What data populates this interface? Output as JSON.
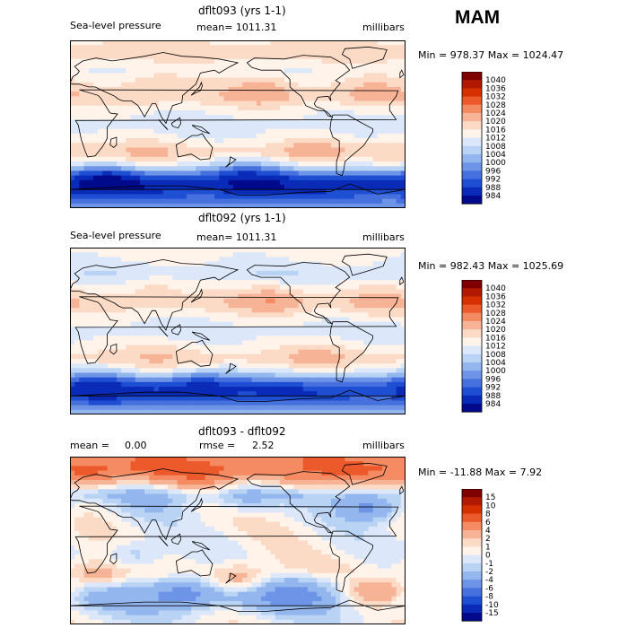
{
  "season": "MAM",
  "chart_data": [
    {
      "type": "heatmap",
      "title": "dflt093 (yrs 1-1)",
      "variable_label": "Sea-level pressure",
      "stat_label": "mean= 1011.31",
      "units": "millibars",
      "minmax_text": "Min = 978.37 Max = 1024.47",
      "min": 978.37,
      "max": 1024.47,
      "mean": 1011.31,
      "colorbar": {
        "levels": [
          "1040",
          "1036",
          "1032",
          "1028",
          "1024",
          "1020",
          "1016",
          "1012",
          "1008",
          "1004",
          "1000",
          "996",
          "992",
          "988",
          "984"
        ],
        "colors": [
          "#7f0000",
          "#b21a00",
          "#d73000",
          "#ec5a2c",
          "#f58b62",
          "#f7b396",
          "#fbdac6",
          "#fff3ea",
          "#dce8fa",
          "#b9d3f4",
          "#93b6ee",
          "#6d94e6",
          "#4670de",
          "#1e4ed2",
          "#0a2ab8",
          "#000a8a"
        ]
      },
      "bands": [
        {
          "lat": 90,
          "v": 1016
        },
        {
          "lat": 75,
          "v": 1019
        },
        {
          "lat": 60,
          "v": 1012
        },
        {
          "lat": 45,
          "v": 1015
        },
        {
          "lat": 30,
          "v": 1019
        },
        {
          "lat": 15,
          "v": 1013
        },
        {
          "lat": 0,
          "v": 1010
        },
        {
          "lat": -15,
          "v": 1012
        },
        {
          "lat": -30,
          "v": 1019
        },
        {
          "lat": -45,
          "v": 1007
        },
        {
          "lat": -55,
          "v": 992
        },
        {
          "lat": -65,
          "v": 984
        },
        {
          "lat": -78,
          "v": 992
        },
        {
          "lat": -90,
          "v": 1000
        }
      ],
      "blobs": [
        {
          "lon": 205,
          "lat": 35,
          "v": 1025
        },
        {
          "lon": 325,
          "lat": 35,
          "v": 1023
        },
        {
          "lon": 95,
          "lat": 40,
          "v": 1021
        },
        {
          "lon": 260,
          "lat": -28,
          "v": 1024
        },
        {
          "lon": 350,
          "lat": -30,
          "v": 1021
        },
        {
          "lon": 80,
          "lat": -32,
          "v": 1022
        },
        {
          "lon": 40,
          "lat": -62,
          "v": 980
        },
        {
          "lon": 190,
          "lat": -60,
          "v": 982
        }
      ]
    },
    {
      "type": "heatmap",
      "title": "dflt092 (yrs 1-1)",
      "variable_label": "Sea-level pressure",
      "stat_label": "mean= 1011.31",
      "units": "millibars",
      "minmax_text": "Min = 982.43 Max = 1025.69",
      "min": 982.43,
      "max": 1025.69,
      "mean": 1011.31,
      "colorbar": {
        "levels": [
          "1040",
          "1036",
          "1032",
          "1028",
          "1024",
          "1020",
          "1016",
          "1012",
          "1008",
          "1004",
          "1000",
          "996",
          "992",
          "988",
          "984"
        ],
        "colors": [
          "#7f0000",
          "#b21a00",
          "#d73000",
          "#ec5a2c",
          "#f58b62",
          "#f7b396",
          "#fbdac6",
          "#fff3ea",
          "#dce8fa",
          "#b9d3f4",
          "#93b6ee",
          "#6d94e6",
          "#4670de",
          "#1e4ed2",
          "#0a2ab8",
          "#000a8a"
        ]
      },
      "bands": [
        {
          "lat": 90,
          "v": 1014
        },
        {
          "lat": 75,
          "v": 1012
        },
        {
          "lat": 60,
          "v": 1008
        },
        {
          "lat": 45,
          "v": 1014
        },
        {
          "lat": 30,
          "v": 1019
        },
        {
          "lat": 15,
          "v": 1013
        },
        {
          "lat": 0,
          "v": 1010
        },
        {
          "lat": -15,
          "v": 1013
        },
        {
          "lat": -30,
          "v": 1019
        },
        {
          "lat": -45,
          "v": 1008
        },
        {
          "lat": -55,
          "v": 994
        },
        {
          "lat": -65,
          "v": 987
        },
        {
          "lat": -78,
          "v": 995
        },
        {
          "lat": -90,
          "v": 1003
        }
      ],
      "blobs": [
        {
          "lon": 215,
          "lat": 33,
          "v": 1026
        },
        {
          "lon": 330,
          "lat": 33,
          "v": 1024
        },
        {
          "lon": 90,
          "lat": 45,
          "v": 1018
        },
        {
          "lon": 265,
          "lat": -28,
          "v": 1023
        },
        {
          "lon": 95,
          "lat": -30,
          "v": 1021
        },
        {
          "lon": 30,
          "lat": -62,
          "v": 983
        },
        {
          "lon": 140,
          "lat": -62,
          "v": 983
        }
      ]
    },
    {
      "type": "heatmap",
      "title": "dflt093 - dflt092",
      "variable_label": "mean =",
      "mean_value": "0.00",
      "stat_label": "rmse =",
      "rmse_value": "2.52",
      "units": "millibars",
      "minmax_text": "Min = -11.88 Max =    7.92",
      "min": -11.88,
      "max": 7.92,
      "mean": 0.0,
      "rmse": 2.52,
      "colorbar": {
        "levels": [
          "15",
          "10",
          "8",
          "6",
          "4",
          "2",
          "1",
          "0",
          "-1",
          "-2",
          "-4",
          "-6",
          "-8",
          "-10",
          "-15"
        ],
        "colors": [
          "#7f0000",
          "#b21a00",
          "#d73000",
          "#ec5a2c",
          "#f58b62",
          "#f7b396",
          "#fbdac6",
          "#fff3ea",
          "#dce8fa",
          "#b9d3f4",
          "#93b6ee",
          "#6d94e6",
          "#4670de",
          "#1e4ed2",
          "#0a2ab8",
          "#000a8a"
        ]
      },
      "bands": [
        {
          "lat": 90,
          "v": 5
        },
        {
          "lat": 75,
          "v": 6
        },
        {
          "lat": 62,
          "v": 2
        },
        {
          "lat": 50,
          "v": -1.5
        },
        {
          "lat": 35,
          "v": 0.3
        },
        {
          "lat": 15,
          "v": 0.3
        },
        {
          "lat": 0,
          "v": 0.2
        },
        {
          "lat": -15,
          "v": 0.3
        },
        {
          "lat": -30,
          "v": 0.5
        },
        {
          "lat": -45,
          "v": -1.5
        },
        {
          "lat": -60,
          "v": -3
        },
        {
          "lat": -75,
          "v": -1
        },
        {
          "lat": -90,
          "v": 0
        }
      ],
      "blobs": [
        {
          "lon": 20,
          "lat": 75,
          "v": 7
        },
        {
          "lon": 140,
          "lat": 72,
          "v": 7
        },
        {
          "lon": 250,
          "lat": 72,
          "v": 6
        },
        {
          "lon": 320,
          "lat": 35,
          "v": -6
        },
        {
          "lon": 190,
          "lat": 45,
          "v": -3
        },
        {
          "lon": 90,
          "lat": 40,
          "v": -3
        },
        {
          "lon": 30,
          "lat": -35,
          "v": 4
        },
        {
          "lon": 180,
          "lat": -40,
          "v": 4
        },
        {
          "lon": 330,
          "lat": -55,
          "v": 6
        },
        {
          "lon": 120,
          "lat": -58,
          "v": -6
        },
        {
          "lon": 240,
          "lat": -60,
          "v": -6
        },
        {
          "lon": 70,
          "lat": -15,
          "v": -2
        }
      ]
    }
  ]
}
